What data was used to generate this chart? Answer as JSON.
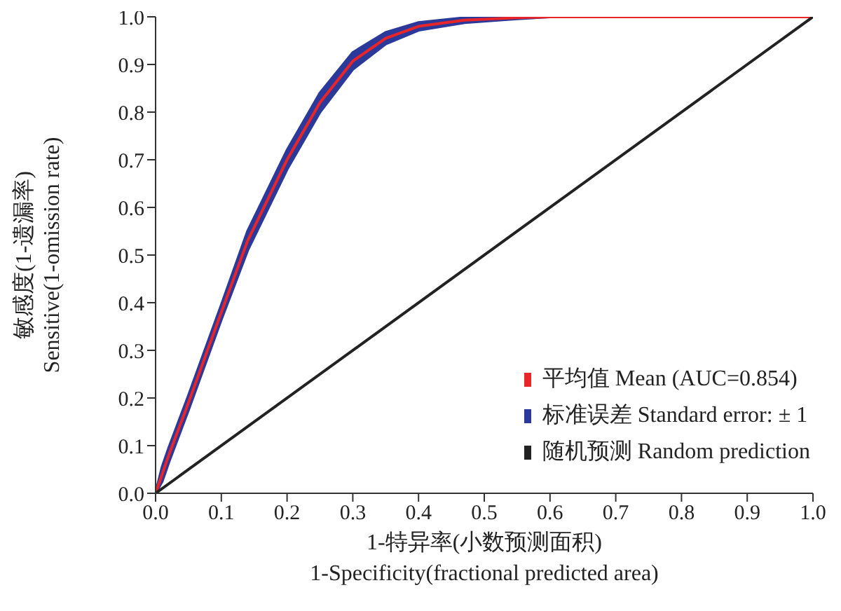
{
  "chart_data": {
    "type": "line",
    "xlabel": "1-特异率(小数预测面积)\n1-Specificity(fractional predicted area)",
    "ylabel": "敏感度(1-遗漏率)\nSensitive(1-omission rate)",
    "xlim": [
      0,
      1
    ],
    "ylim": [
      0,
      1
    ],
    "xticks": [
      {
        "value": 0,
        "label": "0.0"
      },
      {
        "value": 0.1,
        "label": "0.1"
      },
      {
        "value": 0.2,
        "label": "0.2"
      },
      {
        "value": 0.3,
        "label": "0.3"
      },
      {
        "value": 0.4,
        "label": "0.4"
      },
      {
        "value": 0.5,
        "label": "0.5"
      },
      {
        "value": 0.6,
        "label": "0.6"
      },
      {
        "value": 0.7,
        "label": "0.7"
      },
      {
        "value": 0.8,
        "label": "0.8"
      },
      {
        "value": 0.9,
        "label": "0.9"
      },
      {
        "value": 1,
        "label": "1.0"
      }
    ],
    "yticks": [
      {
        "value": 0,
        "label": "0.0"
      },
      {
        "value": 0.1,
        "label": "0.1"
      },
      {
        "value": 0.2,
        "label": "0.2"
      },
      {
        "value": 0.3,
        "label": "0.3"
      },
      {
        "value": 0.4,
        "label": "0.4"
      },
      {
        "value": 0.5,
        "label": "0.5"
      },
      {
        "value": 0.6,
        "label": "0.6"
      },
      {
        "value": 0.7,
        "label": "0.7"
      },
      {
        "value": 0.8,
        "label": "0.8"
      },
      {
        "value": 0.9,
        "label": "0.9"
      },
      {
        "value": 1,
        "label": "1.0"
      }
    ],
    "legend": "bottom right",
    "marker": "none",
    "line_style": "solid",
    "annotations": [
      "标准误差 Standard error: ± 1"
    ],
    "series": [
      {
        "name": "平均值 Mean (AUC=0.854)",
        "color": "#e8262a",
        "x": [
          0,
          0.01,
          0.02,
          0.05,
          0.1,
          0.14,
          0.2,
          0.25,
          0.3,
          0.35,
          0.4,
          0.47,
          0.55,
          0.6,
          0.7,
          0.8,
          0.9,
          1
        ],
        "values": [
          0,
          0.04,
          0.08,
          0.19,
          0.38,
          0.53,
          0.7,
          0.82,
          0.907,
          0.955,
          0.98,
          0.993,
          0.998,
          1,
          1,
          1,
          1,
          1
        ],
        "lower": [
          0,
          0.025,
          0.065,
          0.175,
          0.365,
          0.51,
          0.68,
          0.8,
          0.89,
          0.943,
          0.972,
          0.988,
          0.996,
          1,
          1,
          1,
          1,
          1
        ],
        "upper": [
          0,
          0.055,
          0.095,
          0.205,
          0.395,
          0.55,
          0.72,
          0.84,
          0.925,
          0.967,
          0.988,
          0.998,
          1,
          1,
          1,
          1,
          1,
          1
        ]
      },
      {
        "name": "随机预测 Random prediction",
        "color": "#222222",
        "x": [
          0,
          1
        ],
        "values": [
          0,
          1
        ]
      }
    ]
  }
}
